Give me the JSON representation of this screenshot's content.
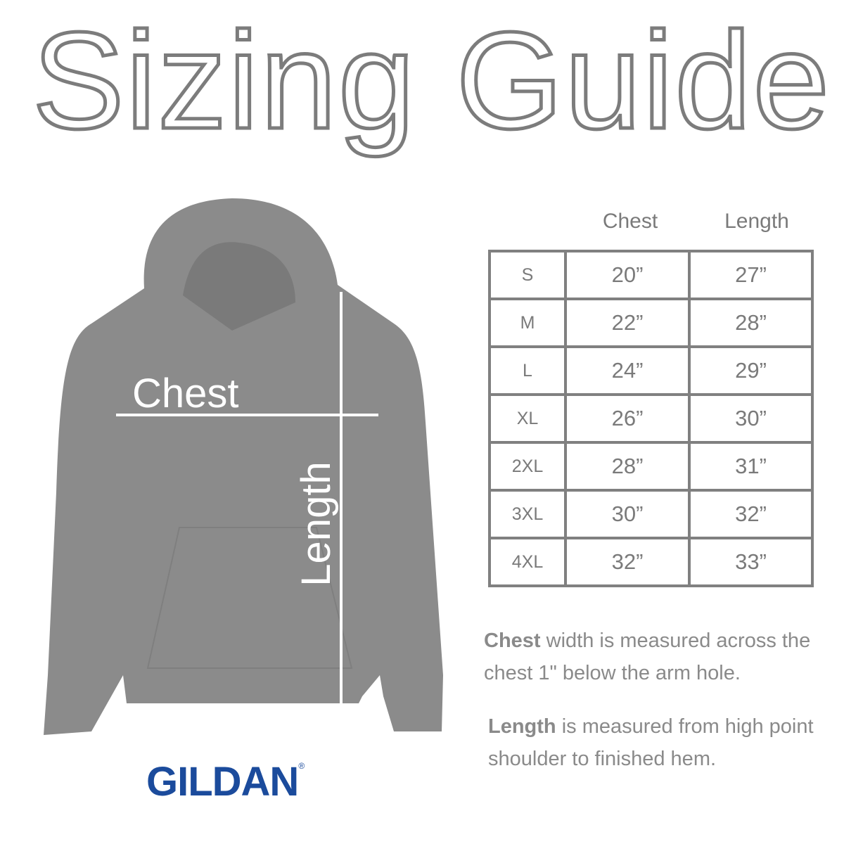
{
  "title": "Sizing Guide",
  "diagram": {
    "chest_label": "Chest",
    "length_label": "Length",
    "garment_color": "#8b8b8b"
  },
  "brand": {
    "logo_text": "GILDAN",
    "registered": "®",
    "color": "#1b4b9c"
  },
  "table": {
    "headers": [
      "Chest",
      "Length"
    ],
    "rows": [
      {
        "size": "S",
        "chest": "20”",
        "length": "27”"
      },
      {
        "size": "M",
        "chest": "22”",
        "length": "28”"
      },
      {
        "size": "L",
        "chest": "24”",
        "length": "29”"
      },
      {
        "size": "XL",
        "chest": "26”",
        "length": "30”"
      },
      {
        "size": "2XL",
        "chest": "28”",
        "length": "31”"
      },
      {
        "size": "3XL",
        "chest": "30”",
        "length": "32”"
      },
      {
        "size": "4XL",
        "chest": "32”",
        "length": "33”"
      }
    ]
  },
  "notes": {
    "chest_bold": "Chest",
    "chest_text": " width is measured across the chest 1\" below the arm hole.",
    "length_bold": "Length",
    "length_text": " is measured from high point shoulder to finished hem."
  }
}
